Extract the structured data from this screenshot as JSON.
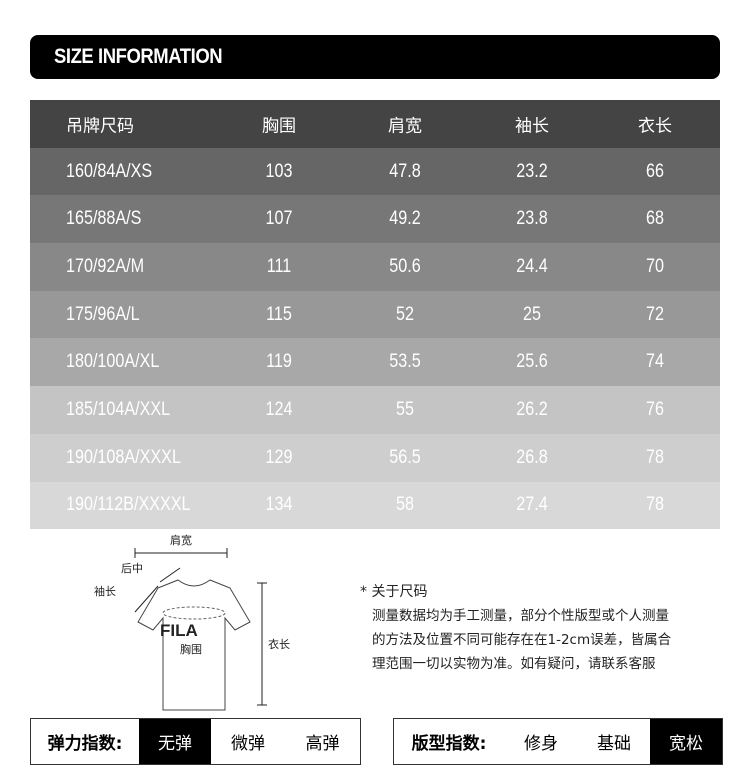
{
  "title": "SIZE INFORMATION",
  "table": {
    "headers": [
      "吊牌尺码",
      "胸围",
      "肩宽",
      "袖长",
      "衣长"
    ],
    "rows": [
      [
        "160/84A/XS",
        "103",
        "47.8",
        "23.2",
        "66"
      ],
      [
        "165/88A/S",
        "107",
        "49.2",
        "23.8",
        "68"
      ],
      [
        "170/92A/M",
        "111",
        "50.6",
        "24.4",
        "70"
      ],
      [
        "175/96A/L",
        "115",
        "52",
        "25",
        "72"
      ],
      [
        "180/100A/XL",
        "119",
        "53.5",
        "25.6",
        "74"
      ],
      [
        "185/104A/XXL",
        "124",
        "55",
        "26.2",
        "76"
      ],
      [
        "190/108A/XXXL",
        "129",
        "56.5",
        "26.8",
        "78"
      ],
      [
        "190/112B/XXXXL",
        "134",
        "58",
        "27.4",
        "78"
      ]
    ],
    "header_color": "#444444",
    "row_colors": [
      "#666666",
      "#777777",
      "#888888",
      "#989898",
      "#a8a8a8",
      "#c4c4c4",
      "#cecece",
      "#d8d8d8"
    ]
  },
  "diagram": {
    "shoulder": "肩宽",
    "back_center": "后中",
    "sleeve": "袖长",
    "chest": "胸围",
    "length": "衣长",
    "logo": "FILA"
  },
  "note": {
    "heading": "* 关于尺码",
    "lines": [
      "测量数据均为手工测量，部分个性版型或个人测量",
      "的方法及位置不同可能存在在1-2cm误差，皆属合",
      "理范围一切以实物为准。如有疑问，请联系客服"
    ]
  },
  "elasticity": {
    "label": "弹力指数:",
    "options": [
      "无弹",
      "微弹",
      "高弹"
    ],
    "selected": "无弹"
  },
  "fit": {
    "label": "版型指数:",
    "options": [
      "修身",
      "基础",
      "宽松"
    ],
    "selected": "宽松"
  }
}
